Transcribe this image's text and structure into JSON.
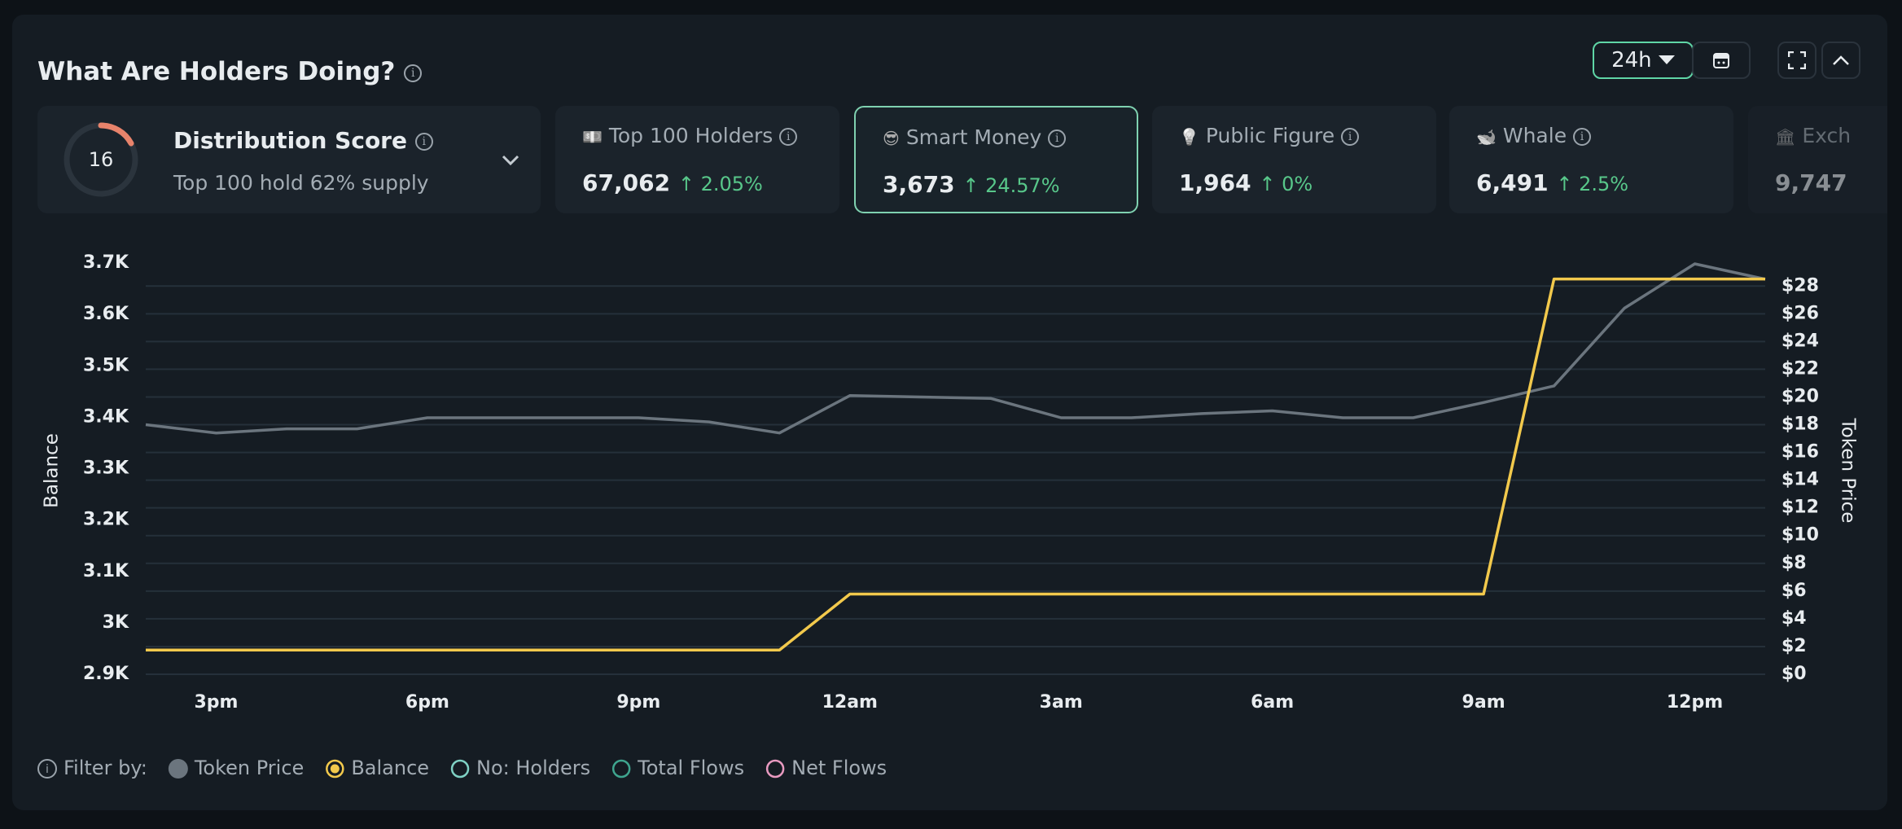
{
  "header": {
    "title": "What Are Holders Doing?",
    "timeframe": "24h"
  },
  "distribution": {
    "score": "16",
    "title": "Distribution Score",
    "subtitle": "Top 100 hold 62% supply"
  },
  "cards": [
    {
      "title": "Top 100 Holders",
      "value": "67,062",
      "change": "2.05%"
    },
    {
      "title": "Smart Money",
      "value": "3,673",
      "change": "24.57%"
    },
    {
      "title": "Public Figure",
      "value": "1,964",
      "change": "0%"
    },
    {
      "title": "Whale",
      "value": "6,491",
      "change": "2.5%"
    },
    {
      "title": "Exch",
      "value": "9,747"
    }
  ],
  "chart_data": {
    "type": "line",
    "y_label": "Balance",
    "y2_label": "Token Price",
    "categories": [
      null,
      "3pm",
      null,
      null,
      "6pm",
      null,
      null,
      "9pm",
      null,
      null,
      "12am",
      null,
      null,
      "3am",
      null,
      null,
      "6am",
      null,
      null,
      "9am",
      null,
      null,
      "12pm",
      null
    ],
    "series": [
      {
        "name": "Token Price",
        "color": "#6b757e",
        "axis": "y2",
        "values": [
          18.0,
          17.4,
          17.7,
          17.7,
          18.5,
          18.5,
          18.5,
          18.5,
          18.2,
          17.4,
          20.1,
          20.0,
          19.9,
          18.5,
          18.5,
          18.8,
          19.0,
          18.5,
          18.5,
          19.6,
          20.8,
          26.4,
          29.6,
          28.5
        ]
      },
      {
        "name": "Balance",
        "color": "#f2c94c",
        "values": [
          2947,
          2947,
          2947,
          2947,
          2947,
          2947,
          2947,
          2947,
          2947,
          2947,
          3056,
          3056,
          3056,
          3056,
          3056,
          3056,
          3056,
          3056,
          3056,
          3056,
          3669,
          3669,
          3669,
          3669
        ]
      }
    ],
    "ylim": [
      2900,
      3700
    ],
    "yticks": [
      {
        "value": 2900,
        "label": "2.9K"
      },
      {
        "value": 3000,
        "label": "3K"
      },
      {
        "value": 3100,
        "label": "3.1K"
      },
      {
        "value": 3200,
        "label": "3.2K"
      },
      {
        "value": 3300,
        "label": "3.3K"
      },
      {
        "value": 3400,
        "label": "3.4K"
      },
      {
        "value": 3500,
        "label": "3.5K"
      },
      {
        "value": 3600,
        "label": "3.6K"
      },
      {
        "value": 3700,
        "label": "3.7K"
      }
    ],
    "y2lim": [
      0,
      29.66
    ],
    "y2ticks": [
      {
        "value": 0,
        "label": "$0"
      },
      {
        "value": 2,
        "label": "$2"
      },
      {
        "value": 4,
        "label": "$4"
      },
      {
        "value": 6,
        "label": "$6"
      },
      {
        "value": 8,
        "label": "$8"
      },
      {
        "value": 10,
        "label": "$10"
      },
      {
        "value": 12,
        "label": "$12"
      },
      {
        "value": 14,
        "label": "$14"
      },
      {
        "value": 16,
        "label": "$16"
      },
      {
        "value": 18,
        "label": "$18"
      },
      {
        "value": 20,
        "label": "$20"
      },
      {
        "value": 22,
        "label": "$22"
      },
      {
        "value": 24,
        "label": "$24"
      },
      {
        "value": 26,
        "label": "$26"
      },
      {
        "value": 28,
        "label": "$28"
      }
    ],
    "grid": true,
    "filter_label": "Filter by:",
    "inactive_filters": [
      {
        "name": "No: Holders",
        "color": "#7fd1c4"
      },
      {
        "name": "Total Flows",
        "color": "#3fa58f"
      },
      {
        "name": "Net Flows",
        "color": "#e89ac0"
      }
    ]
  }
}
